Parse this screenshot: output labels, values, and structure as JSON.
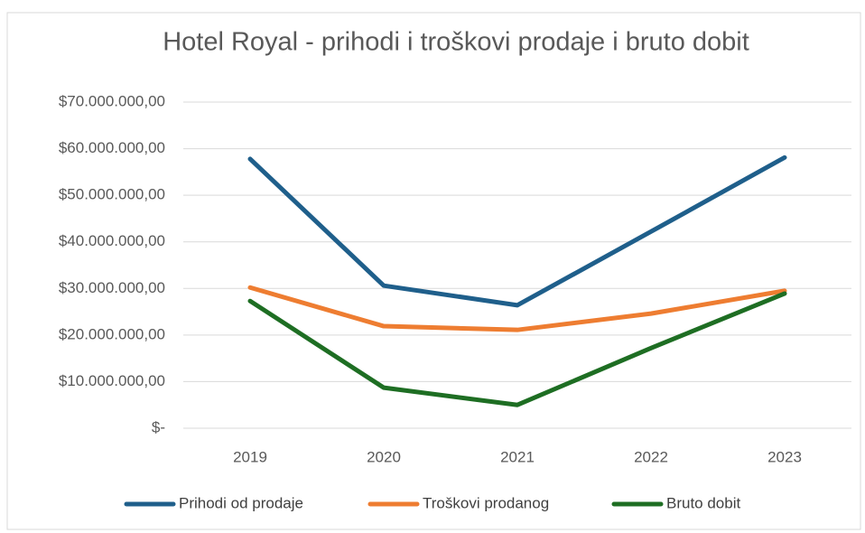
{
  "chart_data": {
    "type": "line",
    "title": "Hotel Royal - prihodi i troškovi prodaje i bruto dobit",
    "categories": [
      "2019",
      "2020",
      "2021",
      "2022",
      "2023"
    ],
    "series": [
      {
        "name": "Prihodi od prodaje",
        "color": "#1f5f8b",
        "values": [
          57800000,
          30600000,
          26400000,
          42200000,
          58100000
        ]
      },
      {
        "name": "Troškovi prodanog",
        "color": "#ee7d31",
        "values": [
          30200000,
          21900000,
          21100000,
          24600000,
          29500000
        ]
      },
      {
        "name": "Bruto dobit",
        "color": "#1e6e23",
        "values": [
          27300000,
          8700000,
          5000000,
          17200000,
          28900000
        ]
      }
    ],
    "ylim": [
      0,
      70000000
    ],
    "yticks": [
      {
        "value": 0,
        "label": "$-"
      },
      {
        "value": 10000000,
        "label": "$10.000.000,00"
      },
      {
        "value": 20000000,
        "label": "$20.000.000,00"
      },
      {
        "value": 30000000,
        "label": "$30.000.000,00"
      },
      {
        "value": 40000000,
        "label": "$40.000.000,00"
      },
      {
        "value": 50000000,
        "label": "$50.000.000,00"
      },
      {
        "value": 60000000,
        "label": "$60.000.000,00"
      },
      {
        "value": 70000000,
        "label": "$70.000.000,00"
      }
    ],
    "grid": true,
    "legend": "bottom"
  }
}
